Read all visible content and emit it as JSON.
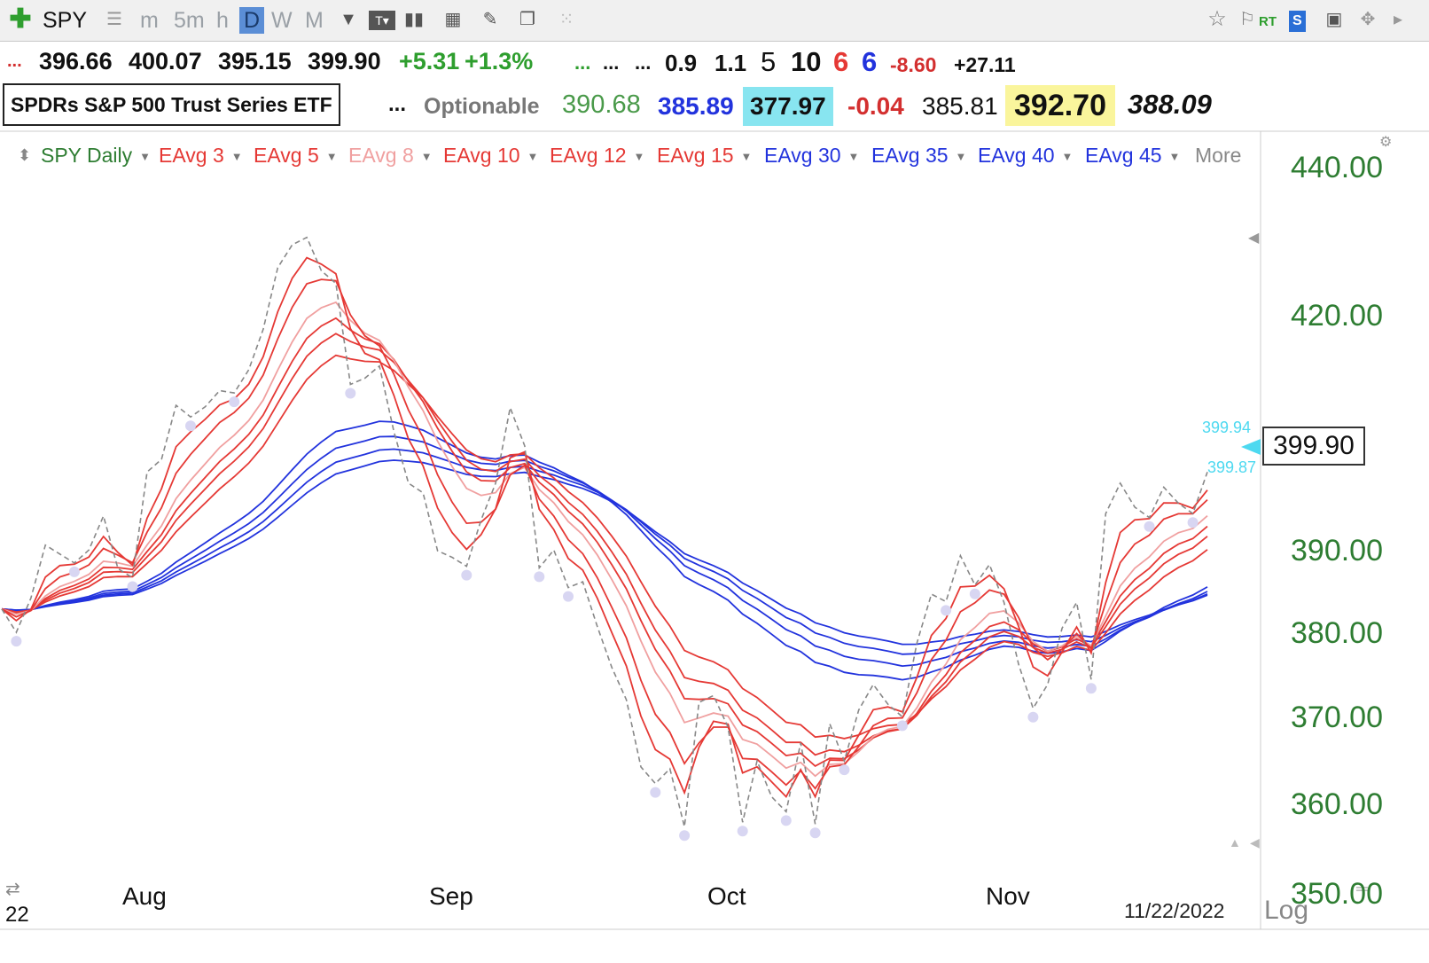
{
  "toolbar": {
    "symbol": "SPY",
    "intervals": [
      "m",
      "5m",
      "h",
      "D",
      "W",
      "M"
    ],
    "active_interval": "D",
    "rt_label": "RT",
    "s_label": "S"
  },
  "quote_row1": {
    "lead": "...",
    "open": "396.66",
    "high": "400.07",
    "low": "395.15",
    "close": "399.90",
    "change": "+5.31",
    "change_pct": "+1.3%",
    "dots1": "...",
    "dots2": "...",
    "dots3": "...",
    "v1": "0.9",
    "v2": "1.1",
    "n1": "5",
    "n2": "10",
    "n3": "6",
    "n4": "6",
    "v3": "-8.60",
    "v4": "+27.11"
  },
  "quote_row2": {
    "name": "SPDRs S&P 500 Trust Series ETF",
    "dots": "...",
    "optionable": "Optionable",
    "v1": "390.68",
    "v2": "385.89",
    "v3": "377.97",
    "v4": "-0.04",
    "v5": "385.81",
    "v6": "392.70",
    "v7": "388.09"
  },
  "legend": {
    "items": [
      {
        "label": "SPY Daily",
        "color": "#2e7d32"
      },
      {
        "label": "EAvg 3",
        "color": "#e53935"
      },
      {
        "label": "EAvg 5",
        "color": "#e53935"
      },
      {
        "label": "EAvg 8",
        "color": "#f0a0a0"
      },
      {
        "label": "EAvg 10",
        "color": "#e53935"
      },
      {
        "label": "EAvg 12",
        "color": "#e53935"
      },
      {
        "label": "EAvg 15",
        "color": "#e53935"
      },
      {
        "label": "EAvg 30",
        "color": "#2233dd"
      },
      {
        "label": "EAvg 35",
        "color": "#2233dd"
      },
      {
        "label": "EAvg 40",
        "color": "#2233dd"
      },
      {
        "label": "EAvg 45",
        "color": "#2233dd"
      }
    ],
    "more": "More"
  },
  "price_axis": {
    "ticks": [
      "440.00",
      "420.00",
      "390.00",
      "380.00",
      "370.00",
      "360.00",
      "350.00"
    ],
    "current_price": "399.90",
    "marker_hi": "399.94",
    "marker_lo": "399.87",
    "log_label": "Log"
  },
  "time_axis": {
    "months": [
      "Aug",
      "Sep",
      "Oct",
      "Nov"
    ],
    "date": "11/22/2022",
    "corner": "22"
  },
  "chart_data": {
    "type": "line",
    "x_labels": [
      "Aug",
      "Sep",
      "Oct",
      "Nov"
    ],
    "ylim": [
      347,
      445
    ],
    "y_scale": "log",
    "series": [
      {
        "name": "SPY Daily",
        "color": "#888888",
        "style": "dashed",
        "values": [
          383.0,
          380.2,
          384.3,
          390.8,
          389.7,
          388.6,
          390.2,
          394.4,
          387.9,
          386.8,
          399.9,
          401.5,
          408.4,
          406.9,
          408.2,
          410.3,
          410.0,
          413.0,
          418.3,
          426.5,
          429.6,
          430.6,
          426.1,
          424.4,
          411.1,
          411.9,
          413.5,
          405.0,
          398.5,
          397.3,
          390.1,
          389.3,
          388.2,
          393.9,
          398.5,
          408.1,
          403.2,
          388.0,
          390.2,
          385.6,
          386.3,
          380.9,
          376.0,
          372.2,
          364.4,
          362.5,
          364.2,
          357.6,
          371.9,
          372.7,
          369.0,
          358.1,
          365.1,
          361.0,
          359.3,
          367.2,
          357.9,
          369.4,
          365.1,
          371.0,
          374.0,
          371.7,
          370.2,
          378.9,
          384.8,
          383.9,
          389.5,
          385.9,
          388.4,
          383.8,
          376.4,
          371.2,
          374.0,
          380.7,
          383.8,
          374.6,
          394.7,
          398.5,
          395.5,
          394.2,
          398.0,
          396.0,
          394.7,
          399.9
        ]
      },
      {
        "name": "EAvg 3",
        "color": "#e53935",
        "period": 3
      },
      {
        "name": "EAvg 5",
        "color": "#e53935",
        "period": 5
      },
      {
        "name": "EAvg 8",
        "color": "#f0a0a0",
        "period": 8
      },
      {
        "name": "EAvg 10",
        "color": "#e53935",
        "period": 10
      },
      {
        "name": "EAvg 12",
        "color": "#e53935",
        "period": 12
      },
      {
        "name": "EAvg 15",
        "color": "#e53935",
        "period": 15
      },
      {
        "name": "EAvg 30",
        "color": "#2233dd",
        "period": 30
      },
      {
        "name": "EAvg 35",
        "color": "#2233dd",
        "period": 35
      },
      {
        "name": "EAvg 40",
        "color": "#2233dd",
        "period": 40
      },
      {
        "name": "EAvg 45",
        "color": "#2233dd",
        "period": 45
      }
    ]
  }
}
